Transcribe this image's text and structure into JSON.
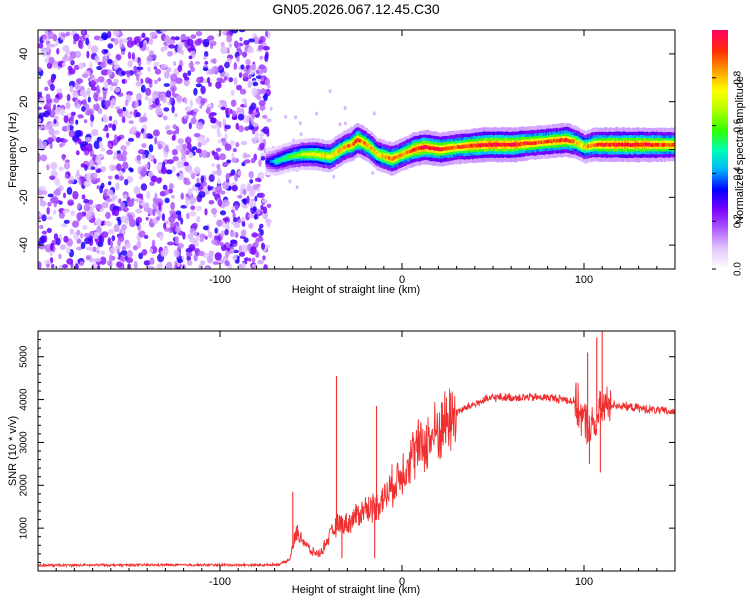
{
  "figure": {
    "title": "GN05.2026.067.12.45.C30"
  },
  "chart_data": [
    {
      "type": "heatmap",
      "name": "spectrogram",
      "title": "GN05.2026.067.12.45.C30",
      "xlabel": "Height of straight line (km)",
      "ylabel": "Frequency (Hz)",
      "xlim": [
        -200,
        150
      ],
      "ylim": [
        -50,
        50
      ],
      "xticks": [
        -100,
        0,
        100
      ],
      "yticks": [
        -40,
        -20,
        0,
        20,
        40
      ],
      "grid": false,
      "noise_region_x": [
        -200,
        -73
      ],
      "noise_frequency_range": [
        -48,
        48
      ],
      "signal_track": {
        "x": [
          -75,
          -70,
          -62,
          -55,
          -48,
          -40,
          -32,
          -28,
          -25,
          -22,
          -18,
          -14,
          -10,
          -6,
          0,
          6,
          12,
          20,
          30,
          45,
          60,
          75,
          90,
          95,
          100,
          105,
          110,
          125,
          140,
          150
        ],
        "frequency": [
          -5,
          -5,
          -3,
          -2,
          -2,
          -3,
          1,
          2,
          4,
          3,
          1,
          -2,
          -3,
          -4,
          -2,
          0,
          1,
          0,
          1,
          2,
          2,
          3,
          4,
          3,
          1,
          2,
          2,
          2,
          2,
          2
        ],
        "amplitude": [
          0.3,
          0.5,
          0.6,
          0.7,
          0.75,
          0.8,
          0.85,
          0.9,
          0.95,
          0.9,
          0.85,
          0.8,
          0.85,
          0.9,
          0.85,
          0.95,
          1.0,
          0.95,
          0.9,
          1.0,
          1.0,
          0.9,
          0.95,
          0.85,
          0.8,
          0.9,
          0.95,
          1.0,
          0.95,
          0.9
        ]
      },
      "colorbar": {
        "label": "Normalized spectral amplitude",
        "range": [
          0.0,
          1.0
        ],
        "ticks": [
          0.0,
          0.2,
          0.4,
          0.6,
          0.8
        ],
        "tick_labels": [
          "0.0",
          "0.2",
          "0.4",
          "0.6",
          "0.8"
        ],
        "colors": [
          "#ffffff",
          "#e2c8ff",
          "#b05cff",
          "#7a00ff",
          "#0000ff",
          "#00b4ff",
          "#00ffb0",
          "#30ff00",
          "#b0ff00",
          "#ffff00",
          "#ffa000",
          "#ff3000",
          "#ff0060"
        ]
      }
    },
    {
      "type": "line",
      "name": "snr",
      "xlabel": "Height of straight line (km)",
      "ylabel": "SNR (10 * v/v)",
      "xlim": [
        -200,
        150
      ],
      "ylim": [
        0,
        5600
      ],
      "xticks": [
        -100,
        0,
        100
      ],
      "yticks": [
        1000,
        2000,
        3000,
        4000,
        5000
      ],
      "grid": false,
      "color": "#f03030",
      "series": [
        {
          "name": "SNR",
          "x": [
            -200,
            -150,
            -100,
            -75,
            -68,
            -62,
            -58,
            -54,
            -50,
            -45,
            -40,
            -35,
            -30,
            -25,
            -20,
            -15,
            -10,
            -5,
            0,
            5,
            10,
            15,
            20,
            25,
            30,
            40,
            50,
            60,
            70,
            80,
            90,
            95,
            100,
            105,
            110,
            115,
            120,
            130,
            140,
            150
          ],
          "values": [
            130,
            140,
            140,
            140,
            150,
            250,
            900,
            700,
            450,
            400,
            800,
            1100,
            1100,
            1300,
            1450,
            1500,
            1700,
            2000,
            2300,
            2700,
            2900,
            3050,
            3300,
            3500,
            3700,
            3900,
            4050,
            4050,
            4050,
            4050,
            4000,
            3950,
            3500,
            3300,
            3800,
            3900,
            3850,
            3800,
            3750,
            3700
          ]
        }
      ],
      "spikes": [
        {
          "x": -60,
          "value": 1850
        },
        {
          "x": -36,
          "value": 4550
        },
        {
          "x": -14,
          "value": 3850
        },
        {
          "x": -33,
          "value": 300
        },
        {
          "x": -15,
          "value": 300
        },
        {
          "x": 102,
          "value": 5100
        },
        {
          "x": 107,
          "value": 5450
        },
        {
          "x": 110,
          "value": 5600
        },
        {
          "x": 103,
          "value": 2500
        },
        {
          "x": 109,
          "value": 2300
        }
      ]
    }
  ]
}
